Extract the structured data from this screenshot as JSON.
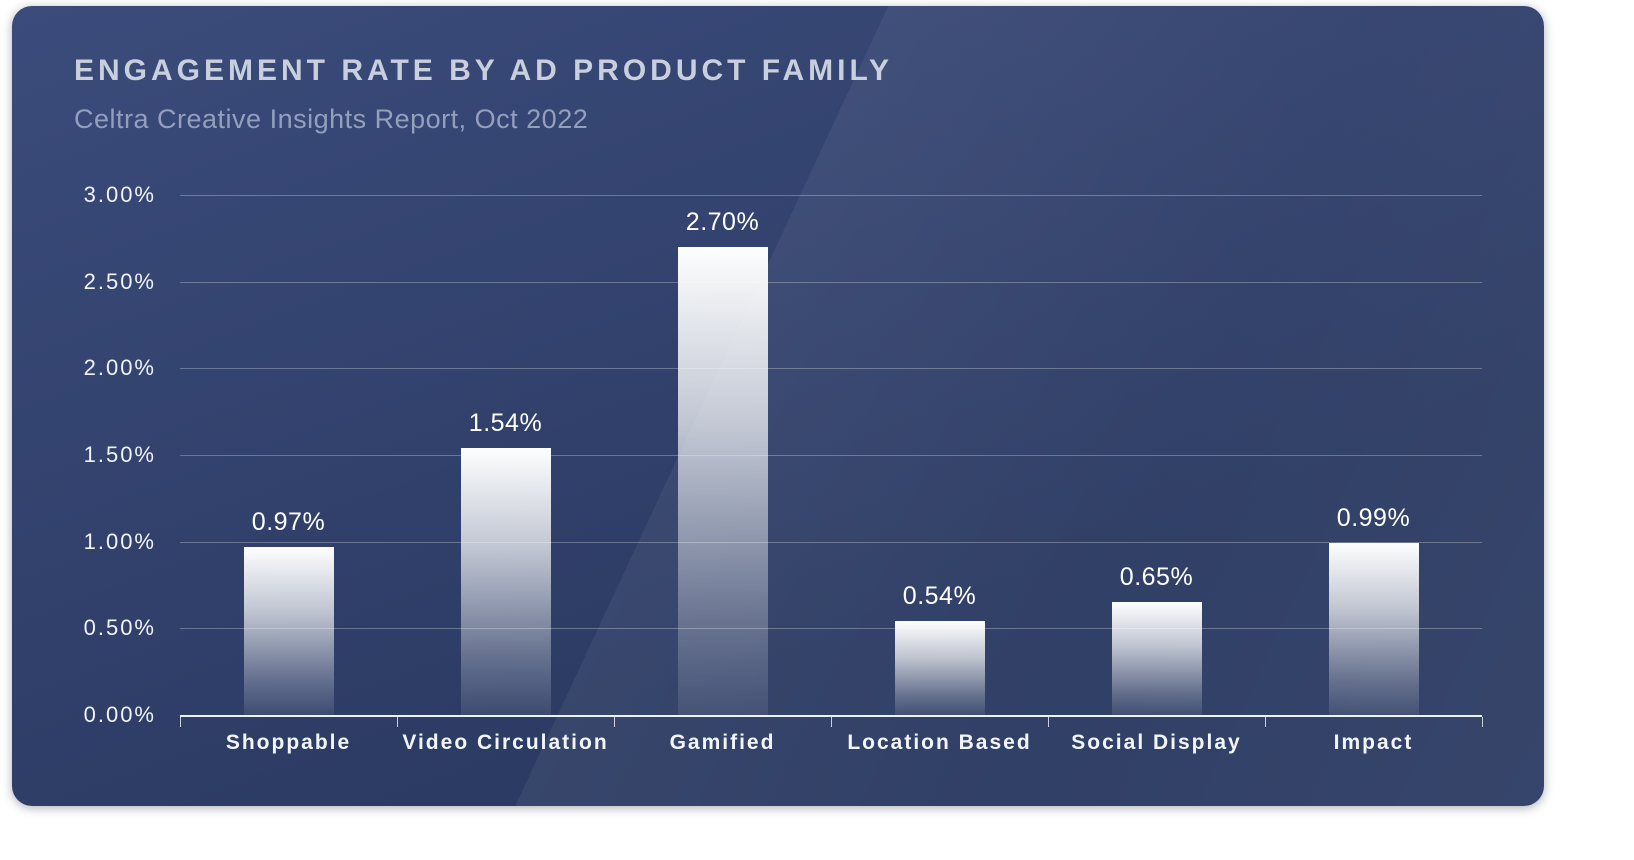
{
  "header": {
    "title": "ENGAGEMENT RATE BY AD PRODUCT FAMILY",
    "subtitle": "Celtra Creative Insights Report, Oct 2022"
  },
  "theme": {
    "page_bg": "#ffffff",
    "card_bg_top": "#3b4b7b",
    "card_bg_bottom": "#2c3b63",
    "title_color": "#c8cfdd",
    "subtitle_color": "#939fbd",
    "grid_color": "rgba(255,255,255,0.28)",
    "baseline_color": "#edf1f8",
    "tick_color": "rgba(255,255,255,0.75)",
    "axis_label_color": "#f0f3f9",
    "value_label_color": "#ffffff",
    "category_label_color": "#f2f5fa",
    "bar_gradient_top": "#fdfefe",
    "bar_gradient_bottom": "rgba(253,254,254,0.08)"
  },
  "chart_data": {
    "type": "bar",
    "title": "Engagement Rate by Ad Product Family",
    "subtitle": "Celtra Creative Insights Report, Oct 2022",
    "categories": [
      "Shoppable",
      "Video Circulation",
      "Gamified",
      "Location Based",
      "Social Display",
      "Impact"
    ],
    "values": [
      0.97,
      1.54,
      2.7,
      0.54,
      0.65,
      0.99
    ],
    "value_labels": [
      "0.97%",
      "1.54%",
      "2.70%",
      "0.54%",
      "0.65%",
      "0.99%"
    ],
    "xlabel": "",
    "ylabel": "",
    "ylim": [
      0,
      3.0
    ],
    "ytick_values": [
      3.0,
      2.5,
      2.0,
      1.5,
      1.0,
      0.5,
      0.0
    ],
    "ytick_labels": [
      "3.00%",
      "2.50%",
      "2.00%",
      "1.50%",
      "1.00%",
      "0.50%",
      "0.00%"
    ],
    "grid": "horizontal gridlines every 0.50%",
    "legend": "none",
    "bar_style": "white-to-transparent vertical gradient on dark navy background"
  }
}
